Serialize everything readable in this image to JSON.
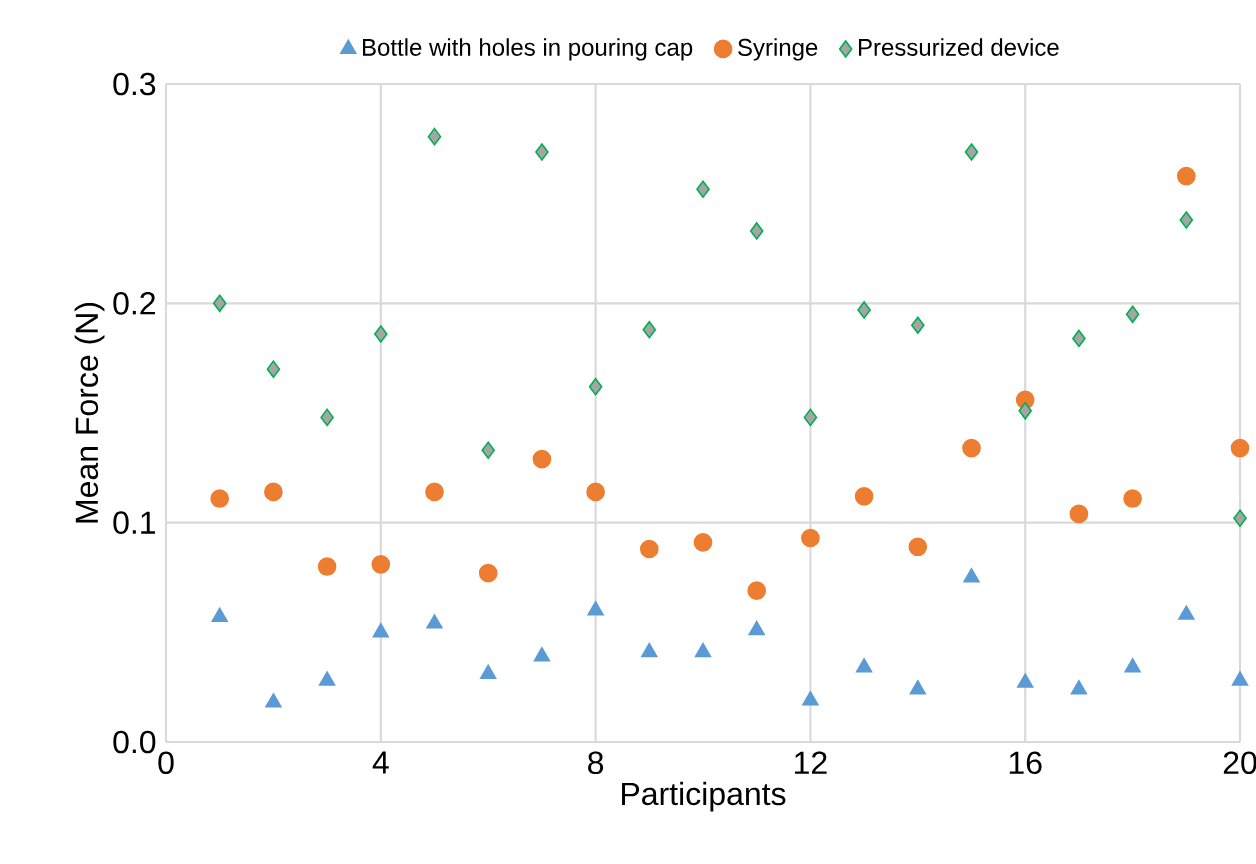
{
  "chart_data": {
    "type": "scatter",
    "xlabel": "Participants",
    "ylabel": "Mean Force (N)",
    "x": [
      1,
      2,
      3,
      4,
      5,
      6,
      7,
      8,
      9,
      10,
      11,
      12,
      13,
      14,
      15,
      16,
      17,
      18,
      19,
      20
    ],
    "series": [
      {
        "name": "Bottle with holes in pouring cap",
        "color": "#5b9bd5",
        "marker": "triangle",
        "values": [
          0.057,
          0.018,
          0.028,
          0.05,
          0.054,
          0.031,
          0.039,
          0.06,
          0.041,
          0.041,
          0.051,
          0.019,
          0.034,
          0.024,
          0.075,
          0.027,
          0.024,
          0.034,
          0.058,
          0.028
        ]
      },
      {
        "name": "Syringe",
        "color": "#ed7d31",
        "marker": "circle",
        "values": [
          0.111,
          0.114,
          0.08,
          0.081,
          0.114,
          0.077,
          0.129,
          0.114,
          0.088,
          0.091,
          0.069,
          0.093,
          0.112,
          0.089,
          0.134,
          0.156,
          0.104,
          0.111,
          0.258,
          0.134
        ]
      },
      {
        "name": "Pressurized device",
        "color": "#00b050",
        "marker": "diamond",
        "values": [
          0.2,
          0.17,
          0.148,
          0.186,
          0.276,
          0.133,
          0.269,
          0.162,
          0.188,
          0.252,
          0.233,
          0.148,
          0.197,
          0.19,
          0.269,
          0.151,
          0.184,
          0.195,
          0.238,
          0.102
        ]
      }
    ],
    "xlim": [
      0,
      20
    ],
    "xticks": [
      0,
      4,
      8,
      12,
      16,
      20
    ],
    "ylim": [
      0,
      0.3
    ],
    "yticks": [
      {
        "value": 0,
        "label": "0.0"
      },
      {
        "value": 0.1,
        "label": "0.1"
      },
      {
        "value": 0.2,
        "label": "0.2"
      },
      0.3
    ],
    "grid": true,
    "legend": "top"
  }
}
